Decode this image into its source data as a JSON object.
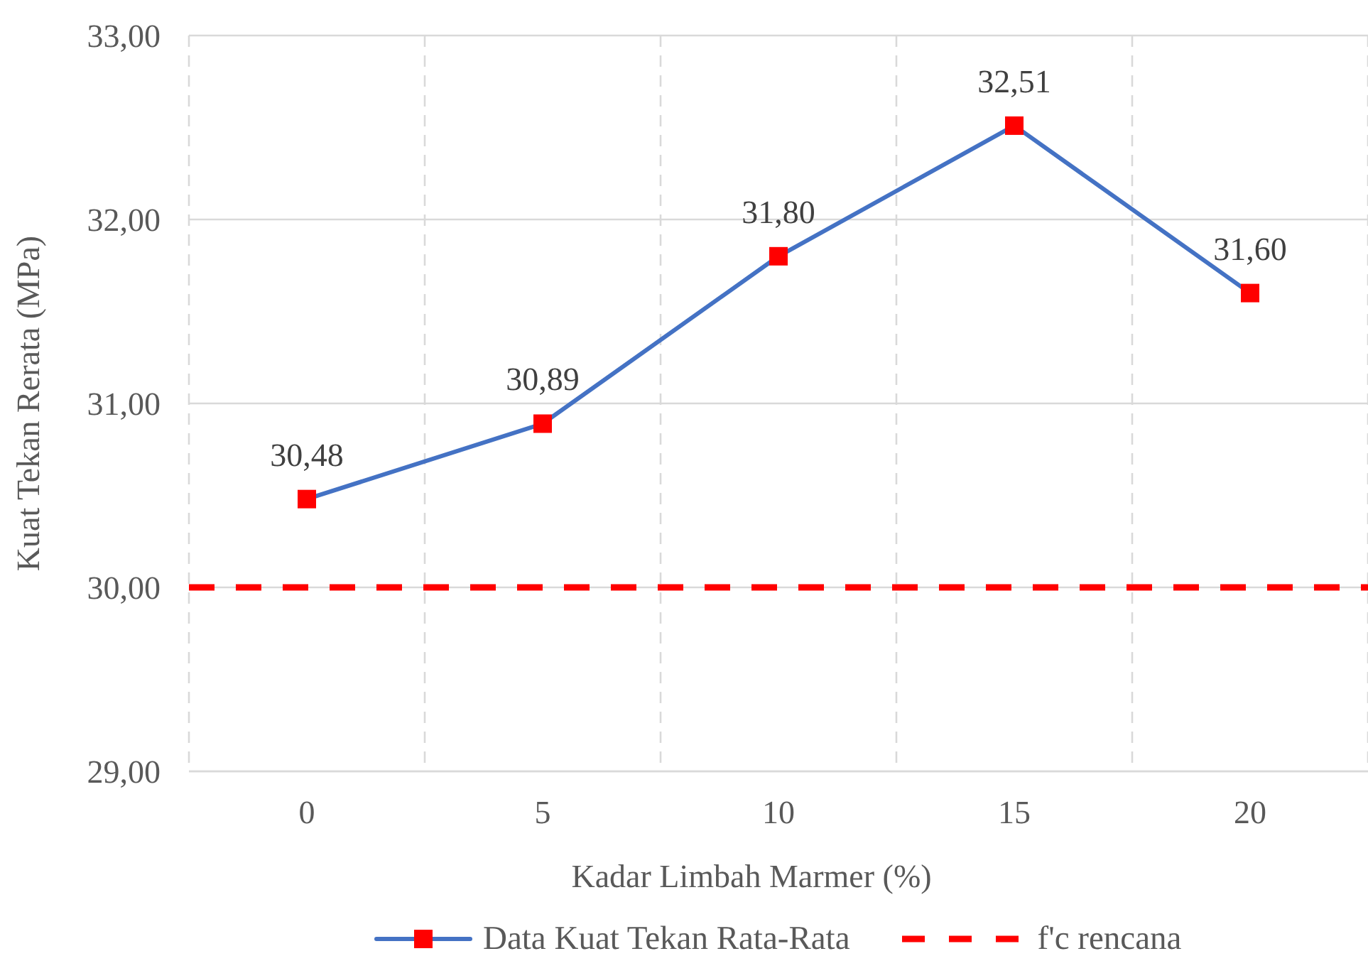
{
  "chart_data": {
    "type": "line",
    "xlabel": "Kadar Limbah Marmer (%)",
    "ylabel": "Kuat Tekan Rerata (MPa)",
    "categories": [
      "0",
      "5",
      "10",
      "15",
      "20"
    ],
    "series": [
      {
        "name": "Data Kuat Tekan Rata-Rata",
        "color": "#4472c4",
        "colors": [
          "#ff0000",
          "#ff0000",
          "#ff0000",
          "#ff0000",
          "#ff0000"
        ],
        "values": [
          30.48,
          30.89,
          31.8,
          32.51,
          31.6
        ],
        "value_labels": [
          "30,48",
          "30,89",
          "31,80",
          "32,51",
          "31,60"
        ]
      }
    ],
    "ylim": [
      29,
      33
    ],
    "yticks": [
      {
        "value": 29,
        "label": "29,00"
      },
      {
        "value": 30,
        "label": "30,00"
      },
      {
        "value": 31,
        "label": "31,00"
      },
      {
        "value": 32,
        "label": "32,00"
      },
      {
        "value": 33,
        "label": "33,00"
      }
    ],
    "ref_lines": [
      {
        "axis": "y",
        "value": 30,
        "label": "f'c rencana",
        "color": "#ff0000",
        "line_style": "dashed"
      }
    ],
    "grid": true,
    "legend": "bottom",
    "marker": "square",
    "line_style": "solid"
  }
}
